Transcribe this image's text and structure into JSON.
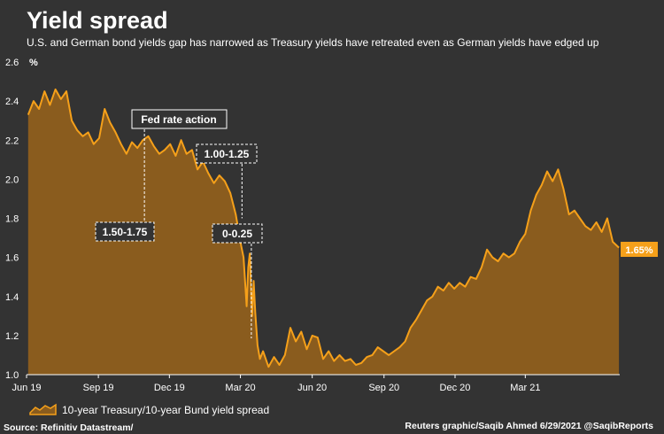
{
  "header": {
    "title": "Yield spread",
    "subtitle": "U.S. and German bond yields gap has narrowed as Treasury yields have retreated even as German yields have edged up"
  },
  "footer": {
    "source": "Source: Refinitiv Datastream/",
    "credit": "Reuters graphic/Saqib Ahmed 6/29/2021 @SaqibReports"
  },
  "colors": {
    "background": "#333333",
    "line": "#f5a01a",
    "area": "#8a5c1e",
    "annotation": "#ffffff"
  },
  "chart_data": {
    "type": "area",
    "series": [
      {
        "name": "10-year Treasury/10-year Bund yield spread",
        "points": [
          [
            "2019-06-03",
            2.33
          ],
          [
            "2019-06-10",
            2.4
          ],
          [
            "2019-06-17",
            2.36
          ],
          [
            "2019-06-24",
            2.45
          ],
          [
            "2019-07-01",
            2.38
          ],
          [
            "2019-07-08",
            2.46
          ],
          [
            "2019-07-15",
            2.41
          ],
          [
            "2019-07-22",
            2.45
          ],
          [
            "2019-07-29",
            2.3
          ],
          [
            "2019-08-05",
            2.25
          ],
          [
            "2019-08-12",
            2.22
          ],
          [
            "2019-08-19",
            2.24
          ],
          [
            "2019-08-26",
            2.18
          ],
          [
            "2019-09-02",
            2.21
          ],
          [
            "2019-09-09",
            2.36
          ],
          [
            "2019-09-16",
            2.29
          ],
          [
            "2019-09-23",
            2.24
          ],
          [
            "2019-09-30",
            2.18
          ],
          [
            "2019-10-07",
            2.13
          ],
          [
            "2019-10-14",
            2.19
          ],
          [
            "2019-10-21",
            2.16
          ],
          [
            "2019-10-28",
            2.2
          ],
          [
            "2019-11-04",
            2.22
          ],
          [
            "2019-11-11",
            2.17
          ],
          [
            "2019-11-18",
            2.13
          ],
          [
            "2019-11-25",
            2.15
          ],
          [
            "2019-12-02",
            2.18
          ],
          [
            "2019-12-09",
            2.12
          ],
          [
            "2019-12-16",
            2.2
          ],
          [
            "2019-12-23",
            2.13
          ],
          [
            "2019-12-30",
            2.15
          ],
          [
            "2020-01-06",
            2.05
          ],
          [
            "2020-01-13",
            2.09
          ],
          [
            "2020-01-20",
            2.03
          ],
          [
            "2020-01-27",
            1.98
          ],
          [
            "2020-02-03",
            2.02
          ],
          [
            "2020-02-10",
            1.99
          ],
          [
            "2020-02-17",
            1.93
          ],
          [
            "2020-02-24",
            1.82
          ],
          [
            "2020-03-02",
            1.66
          ],
          [
            "2020-03-05",
            1.6
          ],
          [
            "2020-03-09",
            1.35
          ],
          [
            "2020-03-11",
            1.55
          ],
          [
            "2020-03-13",
            1.62
          ],
          [
            "2020-03-16",
            1.3
          ],
          [
            "2020-03-18",
            1.48
          ],
          [
            "2020-03-20",
            1.32
          ],
          [
            "2020-03-23",
            1.15
          ],
          [
            "2020-03-26",
            1.08
          ],
          [
            "2020-03-30",
            1.12
          ],
          [
            "2020-04-06",
            1.04
          ],
          [
            "2020-04-13",
            1.09
          ],
          [
            "2020-04-20",
            1.05
          ],
          [
            "2020-04-27",
            1.1
          ],
          [
            "2020-05-04",
            1.24
          ],
          [
            "2020-05-11",
            1.17
          ],
          [
            "2020-05-18",
            1.22
          ],
          [
            "2020-05-25",
            1.13
          ],
          [
            "2020-06-01",
            1.2
          ],
          [
            "2020-06-08",
            1.19
          ],
          [
            "2020-06-15",
            1.08
          ],
          [
            "2020-06-22",
            1.12
          ],
          [
            "2020-06-29",
            1.07
          ],
          [
            "2020-07-06",
            1.1
          ],
          [
            "2020-07-13",
            1.07
          ],
          [
            "2020-07-20",
            1.08
          ],
          [
            "2020-07-27",
            1.05
          ],
          [
            "2020-08-03",
            1.06
          ],
          [
            "2020-08-10",
            1.09
          ],
          [
            "2020-08-17",
            1.1
          ],
          [
            "2020-08-24",
            1.14
          ],
          [
            "2020-08-31",
            1.12
          ],
          [
            "2020-09-07",
            1.1
          ],
          [
            "2020-09-14",
            1.12
          ],
          [
            "2020-09-21",
            1.14
          ],
          [
            "2020-09-28",
            1.17
          ],
          [
            "2020-10-05",
            1.24
          ],
          [
            "2020-10-12",
            1.28
          ],
          [
            "2020-10-19",
            1.33
          ],
          [
            "2020-10-26",
            1.38
          ],
          [
            "2020-11-02",
            1.4
          ],
          [
            "2020-11-09",
            1.45
          ],
          [
            "2020-11-16",
            1.43
          ],
          [
            "2020-11-23",
            1.47
          ],
          [
            "2020-11-30",
            1.44
          ],
          [
            "2020-12-07",
            1.47
          ],
          [
            "2020-12-14",
            1.45
          ],
          [
            "2020-12-21",
            1.5
          ],
          [
            "2020-12-28",
            1.49
          ],
          [
            "2021-01-04",
            1.55
          ],
          [
            "2021-01-11",
            1.64
          ],
          [
            "2021-01-18",
            1.6
          ],
          [
            "2021-01-25",
            1.58
          ],
          [
            "2021-02-01",
            1.62
          ],
          [
            "2021-02-08",
            1.6
          ],
          [
            "2021-02-15",
            1.62
          ],
          [
            "2021-02-22",
            1.68
          ],
          [
            "2021-03-01",
            1.72
          ],
          [
            "2021-03-08",
            1.84
          ],
          [
            "2021-03-15",
            1.92
          ],
          [
            "2021-03-22",
            1.97
          ],
          [
            "2021-03-29",
            2.04
          ],
          [
            "2021-04-05",
            1.99
          ],
          [
            "2021-04-12",
            2.05
          ],
          [
            "2021-04-19",
            1.95
          ],
          [
            "2021-04-26",
            1.82
          ],
          [
            "2021-05-03",
            1.84
          ],
          [
            "2021-05-10",
            1.8
          ],
          [
            "2021-05-17",
            1.76
          ],
          [
            "2021-05-24",
            1.74
          ],
          [
            "2021-05-31",
            1.78
          ],
          [
            "2021-06-07",
            1.73
          ],
          [
            "2021-06-14",
            1.8
          ],
          [
            "2021-06-21",
            1.68
          ],
          [
            "2021-06-29",
            1.65
          ]
        ]
      }
    ],
    "ylabel": "%",
    "ylim": [
      1.0,
      2.6
    ],
    "y_ticks": [
      1.0,
      1.2,
      1.4,
      1.6,
      1.8,
      2.0,
      2.2,
      2.4,
      2.6
    ],
    "x_range": [
      "2019-06-01",
      "2021-06-30"
    ],
    "x_ticks": [
      {
        "date": "2019-06-01",
        "label": "Jun 19"
      },
      {
        "date": "2019-09-01",
        "label": "Sep 19"
      },
      {
        "date": "2019-12-01",
        "label": "Dec 19"
      },
      {
        "date": "2020-03-01",
        "label": "Mar 20"
      },
      {
        "date": "2020-06-01",
        "label": "Jun 20"
      },
      {
        "date": "2020-09-01",
        "label": "Sep 20"
      },
      {
        "date": "2020-12-01",
        "label": "Dec 20"
      },
      {
        "date": "2021-03-01",
        "label": "Mar 21"
      }
    ],
    "grid": false,
    "legend_position": "bottom-left",
    "last_value_label": "1.65%",
    "annotations": {
      "heading": "Fed rate action",
      "items": [
        {
          "label": "1.50-1.75",
          "date": "2019-10-30",
          "value": 2.2
        },
        {
          "label": "1.00-1.25",
          "date": "2020-03-03",
          "value": 1.8
        },
        {
          "label": "0-0.25",
          "date": "2020-03-15",
          "value": 1.6
        }
      ]
    }
  }
}
